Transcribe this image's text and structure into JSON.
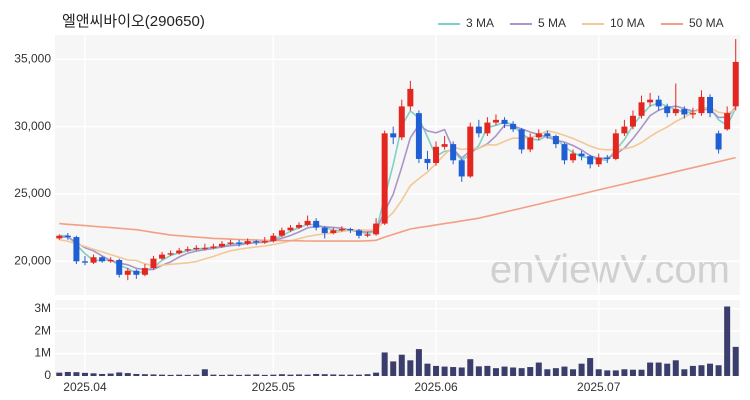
{
  "chart_data": {
    "type": "candlestick",
    "title": "엘앤씨바이오(290650)",
    "watermark": "enViewV.com",
    "categories": [
      null,
      null,
      null,
      "2025.04",
      null,
      null,
      null,
      null,
      null,
      null,
      null,
      null,
      null,
      null,
      null,
      null,
      null,
      null,
      null,
      null,
      null,
      null,
      null,
      null,
      null,
      "2025.05",
      null,
      null,
      null,
      null,
      null,
      null,
      null,
      null,
      null,
      null,
      null,
      null,
      null,
      null,
      null,
      null,
      null,
      null,
      "2025.06",
      null,
      null,
      null,
      null,
      null,
      null,
      null,
      null,
      null,
      null,
      null,
      null,
      null,
      null,
      null,
      null,
      null,
      null,
      "2025.07",
      null,
      null,
      null,
      null,
      null,
      null,
      null,
      null,
      null,
      null,
      null,
      null,
      null,
      null,
      null,
      null
    ],
    "open": [
      21700,
      21900,
      21800,
      20000,
      19900,
      20300,
      20000,
      20100,
      19000,
      19300,
      19000,
      19500,
      20200,
      20500,
      20600,
      20800,
      20900,
      21000,
      21000,
      21100,
      21300,
      21400,
      21300,
      21500,
      21400,
      21500,
      21900,
      22300,
      22500,
      22700,
      23000,
      22500,
      22100,
      22300,
      22400,
      22300,
      21900,
      22000,
      22800,
      29500,
      29200,
      31500,
      31000,
      27600,
      27300,
      28500,
      28700,
      27500,
      26300,
      30000,
      29500,
      30300,
      30500,
      30200,
      29800,
      28300,
      29200,
      29500,
      29300,
      28700,
      27500,
      28000,
      27800,
      27200,
      27700,
      27600,
      29500,
      30000,
      30800,
      31800,
      32000,
      31500,
      31000,
      31300,
      30900,
      31000,
      32200,
      29500,
      29800,
      31500
    ],
    "high": [
      22000,
      22100,
      21900,
      20400,
      20500,
      20400,
      20300,
      20200,
      19500,
      19400,
      19800,
      20400,
      20700,
      20800,
      21000,
      21100,
      21200,
      21300,
      21300,
      21500,
      21600,
      21600,
      21700,
      21600,
      21800,
      22100,
      22500,
      22700,
      22900,
      23400,
      23200,
      22600,
      22500,
      22600,
      22500,
      22400,
      22200,
      23200,
      29700,
      30000,
      32000,
      33400,
      31200,
      28200,
      28900,
      29300,
      28900,
      27600,
      30300,
      30500,
      30700,
      30900,
      30700,
      30400,
      29900,
      29500,
      29800,
      29700,
      29400,
      28800,
      28300,
      28200,
      27900,
      28000,
      27900,
      29800,
      30500,
      31200,
      32300,
      32500,
      32300,
      31700,
      33200,
      31500,
      31400,
      32700,
      32400,
      29700,
      31500,
      36500
    ],
    "low": [
      21600,
      21600,
      19800,
      19700,
      19800,
      19900,
      19900,
      18800,
      18600,
      18700,
      18900,
      19400,
      20100,
      20400,
      20500,
      20700,
      20800,
      20800,
      20900,
      21000,
      21200,
      21100,
      21200,
      21200,
      21300,
      21400,
      21800,
      22200,
      22400,
      22600,
      22300,
      21700,
      22000,
      22200,
      22100,
      21700,
      21800,
      21900,
      22700,
      28700,
      29000,
      31200,
      27300,
      26800,
      27100,
      28300,
      27200,
      25900,
      26200,
      29200,
      29300,
      30100,
      29900,
      29600,
      28000,
      28100,
      29000,
      29100,
      28400,
      27200,
      27300,
      27500,
      26900,
      27000,
      27300,
      27500,
      29300,
      29800,
      30600,
      31500,
      31200,
      30700,
      30800,
      30600,
      30600,
      30800,
      30700,
      28000,
      29700,
      31200
    ],
    "close": [
      21900,
      21800,
      20000,
      19900,
      20300,
      20000,
      20100,
      19000,
      19300,
      19000,
      19500,
      20200,
      20500,
      20600,
      20800,
      20900,
      21000,
      21000,
      21100,
      21300,
      21400,
      21300,
      21500,
      21400,
      21500,
      21900,
      22300,
      22500,
      22700,
      23000,
      22500,
      22100,
      22300,
      22400,
      22300,
      21900,
      22000,
      22800,
      29500,
      29200,
      31500,
      32800,
      27600,
      27300,
      28500,
      28700,
      27500,
      26300,
      30000,
      29500,
      30300,
      30500,
      30200,
      29800,
      28300,
      29200,
      29500,
      29300,
      28700,
      27500,
      28000,
      27800,
      27200,
      27700,
      27600,
      29500,
      30000,
      30800,
      31800,
      32000,
      31500,
      31000,
      31300,
      30900,
      31000,
      32200,
      31000,
      28300,
      31000,
      34800
    ],
    "up_color": "#e3261f",
    "down_color": "#1f5fd3",
    "ylim": [
      17500,
      36800
    ],
    "yticks": [
      {
        "value": 20000,
        "label": "20,000"
      },
      {
        "value": 25000,
        "label": "25,000"
      },
      {
        "value": 30000,
        "label": "30,000"
      },
      {
        "value": 35000,
        "label": "35,000"
      }
    ],
    "grid": true,
    "legend": "top-right",
    "moving_averages": [
      {
        "name": "3 MA",
        "color": "#7fd1c6",
        "values": [
          21900,
          21900,
          21230,
          20570,
          20070,
          20070,
          20130,
          19700,
          19470,
          19100,
          19270,
          19570,
          20070,
          20430,
          20630,
          20770,
          20900,
          20970,
          21030,
          21130,
          21270,
          21330,
          21400,
          21400,
          21470,
          21600,
          21900,
          22230,
          22500,
          22730,
          22730,
          22530,
          22300,
          22270,
          22330,
          22200,
          22070,
          22230,
          24770,
          27170,
          30070,
          31170,
          30630,
          29230,
          27800,
          28170,
          28230,
          27500,
          27930,
          28600,
          29930,
          30100,
          30330,
          30170,
          29430,
          29100,
          29000,
          29330,
          29170,
          28500,
          28070,
          27770,
          27670,
          27570,
          27500,
          28270,
          29030,
          30100,
          30870,
          31530,
          31770,
          31500,
          31270,
          31070,
          31070,
          31370,
          31400,
          30500,
          30100,
          31370
        ]
      },
      {
        "name": "5 MA",
        "color": "#a995c9",
        "values": [
          21800,
          21800,
          21400,
          21000,
          20780,
          20400,
          20060,
          19860,
          19740,
          19480,
          19380,
          19400,
          19700,
          19960,
          20320,
          20600,
          20760,
          20860,
          20960,
          21060,
          21160,
          21220,
          21320,
          21380,
          21420,
          21520,
          21720,
          21920,
          22180,
          22480,
          22600,
          22560,
          22520,
          22460,
          22320,
          22200,
          22180,
          22280,
          23700,
          24980,
          27000,
          29160,
          30120,
          29680,
          29540,
          29780,
          28320,
          27660,
          28200,
          28400,
          28720,
          29320,
          30100,
          30060,
          29820,
          29600,
          29400,
          29220,
          29000,
          28840,
          28600,
          28260,
          27840,
          27640,
          27660,
          27960,
          28400,
          29120,
          29940,
          30820,
          31220,
          31420,
          31520,
          31340,
          31140,
          31280,
          31280,
          30680,
          30700,
          31460
        ]
      },
      {
        "name": "10 MA",
        "color": "#f3c896",
        "values": [
          21600,
          21500,
          21300,
          21100,
          20900,
          20700,
          20500,
          20300,
          20100,
          20060,
          19820,
          19660,
          19710,
          19780,
          19830,
          19890,
          19980,
          20180,
          20360,
          20590,
          20780,
          20890,
          20990,
          21070,
          21140,
          21240,
          21370,
          21520,
          21680,
          21850,
          21960,
          22040,
          22120,
          22220,
          22300,
          22340,
          22310,
          22340,
          23020,
          23640,
          24540,
          25610,
          26140,
          26630,
          27250,
          27930,
          28480,
          28310,
          28360,
          28390,
          28660,
          28630,
          28900,
          29150,
          29130,
          29180,
          29380,
          29680,
          29550,
          29350,
          29120,
          28850,
          28550,
          28340,
          28280,
          28300,
          28350,
          28500,
          28810,
          29260,
          29650,
          29970,
          30380,
          30700,
          31040,
          31310,
          31410,
          31060,
          30980,
          31260
        ]
      },
      {
        "name": "50 MA",
        "color": "#f2a085",
        "values": [
          22800,
          22750,
          22700,
          22650,
          22600,
          22550,
          22500,
          22450,
          22400,
          22350,
          22250,
          22150,
          22050,
          21950,
          21900,
          21850,
          21800,
          21750,
          21700,
          21680,
          21650,
          21620,
          21600,
          21580,
          21560,
          21550,
          21540,
          21530,
          21520,
          21510,
          21500,
          21500,
          21500,
          21500,
          21500,
          21500,
          21520,
          21560,
          21800,
          22000,
          22200,
          22400,
          22500,
          22600,
          22700,
          22800,
          22900,
          23000,
          23100,
          23200,
          23350,
          23500,
          23650,
          23800,
          23950,
          24100,
          24250,
          24400,
          24550,
          24700,
          24850,
          25000,
          25150,
          25300,
          25450,
          25600,
          25750,
          25900,
          26050,
          26200,
          26350,
          26500,
          26650,
          26800,
          26950,
          27100,
          27250,
          27400,
          27550,
          27700
        ]
      }
    ],
    "volume": {
      "color": "#3b3e6c",
      "values": [
        150000,
        180000,
        170000,
        140000,
        120000,
        90000,
        110000,
        160000,
        130000,
        90000,
        80000,
        70000,
        60000,
        50000,
        60000,
        50000,
        60000,
        300000,
        60000,
        50000,
        60000,
        50000,
        60000,
        70000,
        50000,
        60000,
        80000,
        60000,
        70000,
        60000,
        90000,
        80000,
        70000,
        60000,
        60000,
        60000,
        80000,
        150000,
        1050000,
        650000,
        950000,
        700000,
        1200000,
        550000,
        450000,
        420000,
        400000,
        380000,
        750000,
        430000,
        450000,
        350000,
        420000,
        380000,
        350000,
        400000,
        600000,
        300000,
        350000,
        420000,
        300000,
        550000,
        800000,
        300000,
        250000,
        250000,
        300000,
        280000,
        280000,
        600000,
        600000,
        550000,
        700000,
        300000,
        450000,
        480000,
        550000,
        480000,
        3100000,
        1300000
      ],
      "ylim": [
        0,
        3300000
      ],
      "yticks": [
        0,
        {
          "value": 1000000,
          "label": "1M"
        },
        {
          "value": 2000000,
          "label": "2M"
        },
        {
          "value": 3000000,
          "label": "3M"
        }
      ]
    }
  }
}
